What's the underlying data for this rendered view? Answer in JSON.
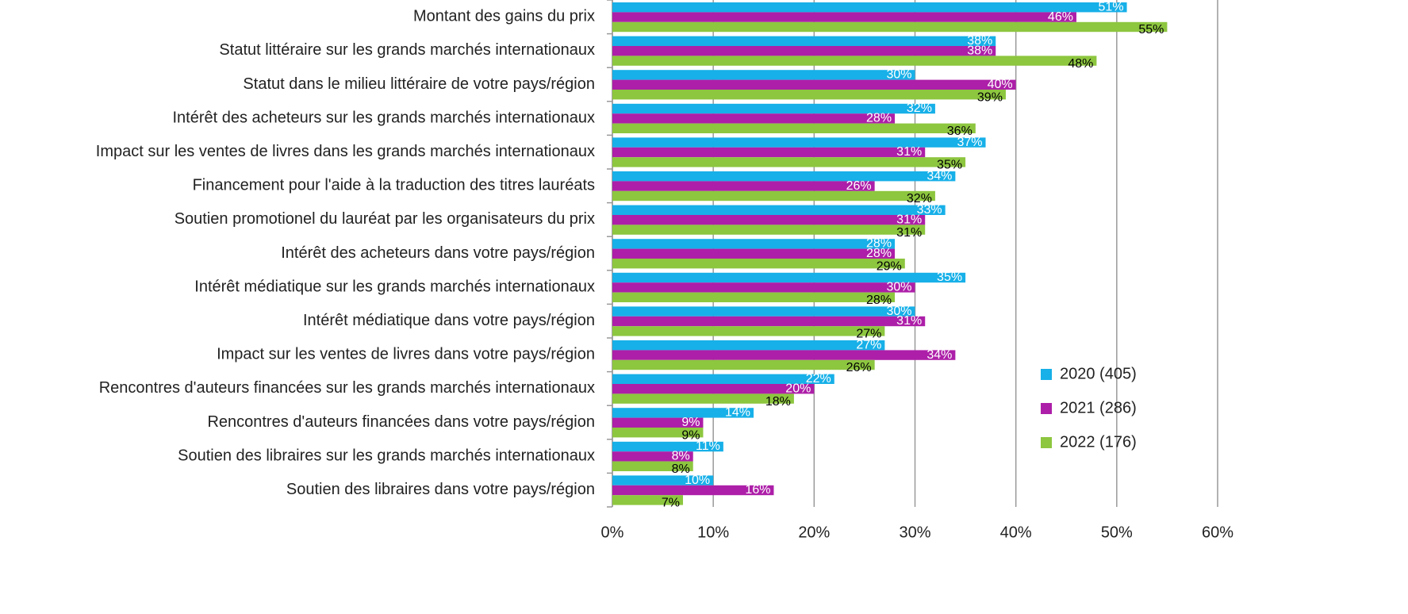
{
  "chart_data": {
    "type": "bar",
    "orientation": "horizontal",
    "categories": [
      "Montant des gains du prix",
      "Statut littéraire sur les grands marchés internationaux",
      "Statut dans le milieu littéraire de votre pays/région",
      "Intérêt des acheteurs sur les grands marchés internationaux",
      "Impact sur les ventes de livres dans les grands marchés internationaux",
      "Financement pour l'aide à la traduction des titres lauréats",
      "Soutien promotionel du lauréat par les organisateurs du prix",
      "Intérêt des acheteurs dans votre pays/région",
      "Intérêt médiatique sur les grands marchés internationaux",
      "Intérêt médiatique dans votre pays/région",
      "Impact sur les ventes de livres dans votre pays/région",
      "Rencontres d'auteurs financées sur les grands marchés internationaux",
      "Rencontres d'auteurs financées dans votre pays/région",
      "Soutien des libraires sur les grands marchés internationaux",
      "Soutien des libraires dans votre pays/région"
    ],
    "series": [
      {
        "name": "2020 (405)",
        "color": "#17b0e8",
        "label_color": "#ffffff",
        "values": [
          51,
          38,
          30,
          32,
          37,
          34,
          33,
          28,
          35,
          30,
          27,
          22,
          14,
          11,
          10
        ],
        "value_labels": [
          "51%",
          "38%",
          "30%",
          "32%",
          "37%",
          "34%",
          "33%",
          "28%",
          "35%",
          "30%",
          "27%",
          "22%",
          "14%",
          "11%",
          "10%"
        ]
      },
      {
        "name": "2021 (286)",
        "color": "#ad1fa8",
        "label_color": "#ffffff",
        "values": [
          46,
          38,
          40,
          28,
          31,
          26,
          31,
          28,
          30,
          31,
          34,
          20,
          9,
          8,
          16
        ],
        "value_labels": [
          "46%",
          "38%",
          "40%",
          "28%",
          "31%",
          "26%",
          "31%",
          "28%",
          "30%",
          "31%",
          "34%",
          "20%",
          "9%",
          "8%",
          "16%"
        ]
      },
      {
        "name": "2022 (176)",
        "color": "#8dc63f",
        "label_color": "#000000",
        "values": [
          55,
          48,
          39,
          36,
          35,
          32,
          31,
          29,
          28,
          27,
          26,
          18,
          9,
          8,
          7
        ],
        "value_labels": [
          "55%",
          "48%",
          "39%",
          "36%",
          "35%",
          "32%",
          "31%",
          "29%",
          "28%",
          "27%",
          "26%",
          "18%",
          "9%",
          "8%",
          "7%"
        ]
      }
    ],
    "xlim": [
      0,
      60
    ],
    "xticks": [
      {
        "value": 0,
        "label": "0%"
      },
      {
        "value": 10,
        "label": "10%"
      },
      {
        "value": 20,
        "label": "20%"
      },
      {
        "value": 30,
        "label": "30%"
      },
      {
        "value": 40,
        "label": "40%"
      },
      {
        "value": 50,
        "label": "50%"
      },
      {
        "value": 60,
        "label": "60%"
      }
    ],
    "grid": true,
    "legend": "right"
  }
}
